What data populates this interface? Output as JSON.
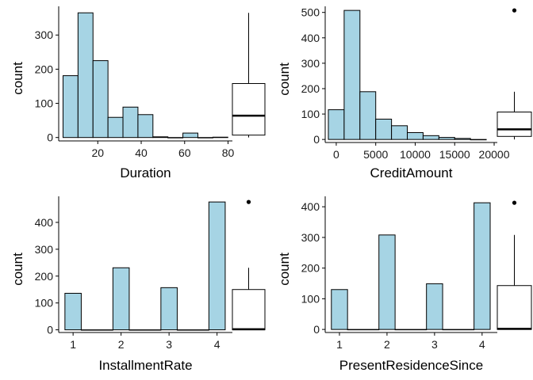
{
  "chart_data": [
    {
      "id": "duration",
      "type": "bar",
      "xlabel": "Duration",
      "ylabel": "count",
      "xlim": [
        2,
        82
      ],
      "ylim": [
        -10,
        384
      ],
      "xticks": [
        20,
        40,
        60,
        80
      ],
      "yticks": [
        0,
        100,
        200,
        300
      ],
      "bins": [
        {
          "x0": 4,
          "x1": 10.9,
          "count": 181
        },
        {
          "x0": 10.9,
          "x1": 17.8,
          "count": 365
        },
        {
          "x0": 17.8,
          "x1": 24.7,
          "count": 225
        },
        {
          "x0": 24.7,
          "x1": 31.6,
          "count": 59
        },
        {
          "x0": 31.6,
          "x1": 38.5,
          "count": 89
        },
        {
          "x0": 38.5,
          "x1": 45.4,
          "count": 67
        },
        {
          "x0": 45.4,
          "x1": 52.3,
          "count": 2
        },
        {
          "x0": 52.3,
          "x1": 59.2,
          "count": 0
        },
        {
          "x0": 59.2,
          "x1": 66.1,
          "count": 13
        },
        {
          "x0": 66.1,
          "x1": 73.0,
          "count": 0
        },
        {
          "x0": 73.0,
          "x1": 79.9,
          "count": 1
        }
      ],
      "boxplot": {
        "q1": 7,
        "median": 64,
        "q3": 158,
        "whisker_low": 0,
        "whisker_high": 365,
        "outliers": []
      }
    },
    {
      "id": "creditamount",
      "type": "bar",
      "xlabel": "CreditAmount",
      "ylabel": "count",
      "xlim": [
        -1400,
        20400
      ],
      "ylim": [
        -12,
        524
      ],
      "xticks": [
        0,
        5000,
        10000,
        15000,
        20000
      ],
      "yticks": [
        0,
        100,
        200,
        300,
        400,
        500
      ],
      "bins": [
        {
          "x0": -1000,
          "x1": 1000,
          "count": 117
        },
        {
          "x0": 1000,
          "x1": 3000,
          "count": 508
        },
        {
          "x0": 3000,
          "x1": 5000,
          "count": 188
        },
        {
          "x0": 5000,
          "x1": 7000,
          "count": 80
        },
        {
          "x0": 7000,
          "x1": 9000,
          "count": 54
        },
        {
          "x0": 9000,
          "x1": 11000,
          "count": 27
        },
        {
          "x0": 11000,
          "x1": 13000,
          "count": 15
        },
        {
          "x0": 13000,
          "x1": 15000,
          "count": 8
        },
        {
          "x0": 15000,
          "x1": 17000,
          "count": 4
        },
        {
          "x0": 17000,
          "x1": 19000,
          "count": 0
        }
      ],
      "boxplot": {
        "q1": 12,
        "median": 40,
        "q3": 108,
        "whisker_low": 0,
        "whisker_high": 188,
        "outliers": [
          508
        ]
      }
    },
    {
      "id": "installmentrate",
      "type": "bar",
      "xlabel": "InstallmentRate",
      "ylabel": "count",
      "xlim": [
        0.7,
        4.32
      ],
      "ylim": [
        -10,
        497
      ],
      "xticks": [
        1,
        2,
        3,
        4
      ],
      "yticks": [
        0,
        100,
        200,
        300,
        400
      ],
      "bins": [
        {
          "x0": 0.83,
          "x1": 1.17,
          "count": 136
        },
        {
          "x0": 1.17,
          "x1": 1.83,
          "count": 0
        },
        {
          "x0": 1.83,
          "x1": 2.17,
          "count": 231
        },
        {
          "x0": 2.17,
          "x1": 2.83,
          "count": 0
        },
        {
          "x0": 2.83,
          "x1": 3.17,
          "count": 157
        },
        {
          "x0": 3.17,
          "x1": 3.83,
          "count": 0
        },
        {
          "x0": 3.83,
          "x1": 4.17,
          "count": 476
        }
      ],
      "boxplot": {
        "q1": 0,
        "median": 2,
        "q3": 150,
        "whisker_low": 0,
        "whisker_high": 231,
        "outliers": [
          476
        ]
      }
    },
    {
      "id": "presentresidencesince",
      "type": "bar",
      "xlabel": "PresentResidenceSince",
      "ylabel": "count",
      "xlim": [
        0.7,
        4.32
      ],
      "ylim": [
        -10,
        434
      ],
      "xticks": [
        1,
        2,
        3,
        4
      ],
      "yticks": [
        0,
        100,
        200,
        300,
        400
      ],
      "bins": [
        {
          "x0": 0.83,
          "x1": 1.17,
          "count": 130
        },
        {
          "x0": 1.17,
          "x1": 1.83,
          "count": 0
        },
        {
          "x0": 1.83,
          "x1": 2.17,
          "count": 308
        },
        {
          "x0": 2.17,
          "x1": 2.83,
          "count": 0
        },
        {
          "x0": 2.83,
          "x1": 3.17,
          "count": 149
        },
        {
          "x0": 3.17,
          "x1": 3.83,
          "count": 0
        },
        {
          "x0": 3.83,
          "x1": 4.17,
          "count": 413
        }
      ],
      "boxplot": {
        "q1": 0,
        "median": 2,
        "q3": 143,
        "whisker_low": 0,
        "whisker_high": 308,
        "outliers": [
          413
        ]
      }
    }
  ]
}
